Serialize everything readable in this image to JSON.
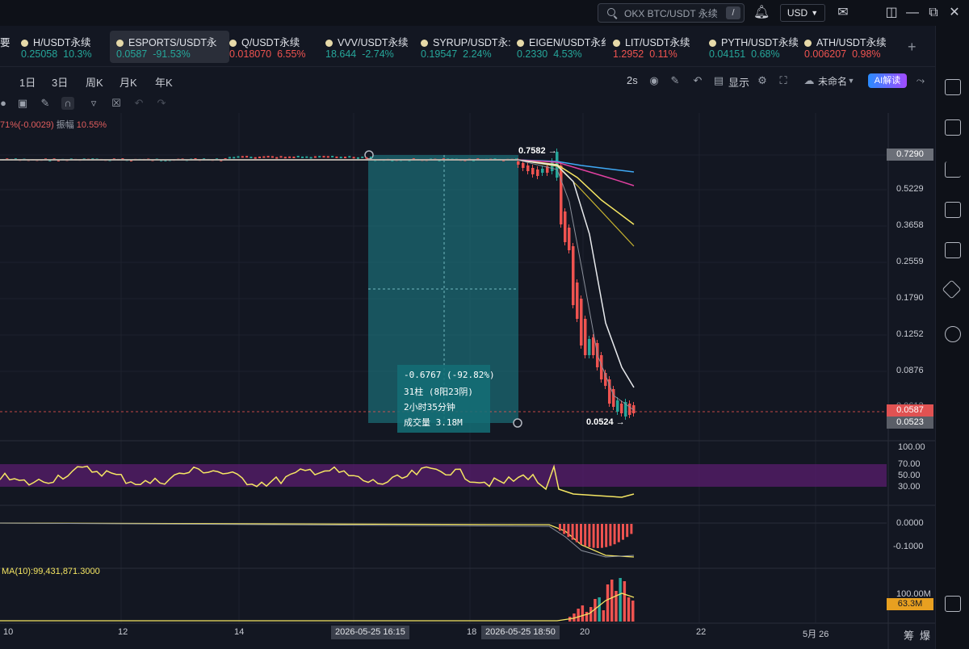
{
  "header": {
    "search_placeholder": "OKX BTC/USDT 永续",
    "search_shortcut": "/",
    "currency": "USD",
    "icons": [
      "bell-icon",
      "mail-icon",
      "grid-icon",
      "minimize-icon",
      "restore-icon",
      "close-icon"
    ]
  },
  "tickers": [
    {
      "name": "H/USDT永续",
      "price": "0.25058",
      "change": "10.3%",
      "dir": "up",
      "active": false
    },
    {
      "name": "ESPORTS/USDT永",
      "price": "0.0587",
      "change": "-91.53%",
      "dir": "up",
      "active": true
    },
    {
      "name": "Q/USDT永续",
      "price": "0.018070",
      "change": "6.55%",
      "dir": "dn",
      "active": false
    },
    {
      "name": "VVV/USDT永续",
      "price": "18.644",
      "change": "-2.74%",
      "dir": "up",
      "active": false
    },
    {
      "name": "SYRUP/USDT永:",
      "price": "0.19547",
      "change": "2.24%",
      "dir": "up",
      "active": false
    },
    {
      "name": "EIGEN/USDT永纟",
      "price": "0.2330",
      "change": "4.53%",
      "dir": "up",
      "active": false
    },
    {
      "name": "LIT/USDT永续",
      "price": "1.2952",
      "change": "0.11%",
      "dir": "dn",
      "active": false
    },
    {
      "name": "PYTH/USDT永续",
      "price": "0.04151",
      "change": "0.68%",
      "dir": "up",
      "active": false
    },
    {
      "name": "ATH/USDT永续",
      "price": "0.006207",
      "change": "0.98%",
      "dir": "dn",
      "active": false
    }
  ],
  "ticker_left_fragment": "要",
  "plus_label": "+",
  "timeframes": [
    "1日",
    "3日",
    "周K",
    "月K",
    "年K"
  ],
  "toolbar_right": {
    "interval": "2s",
    "display": "显示",
    "unnamed": "未命名",
    "ai": "AI解读"
  },
  "info_line": {
    "change": "71%(-0.0029)",
    "amp_label": "振幅",
    "amp_value": "10.55%"
  },
  "price_axis": [
    "0.7290",
    "0.5229",
    "0.3658",
    "0.2559",
    "0.1790",
    "0.1252",
    "0.0876",
    "0.0587",
    "0.0523"
  ],
  "price_badges": {
    "max": "0.7290",
    "current": "0.0587",
    "last": "0.0523",
    "covered": "0.0612"
  },
  "annotations": {
    "high": "0.7582",
    "low": "0.0524"
  },
  "measure_tooltip": [
    "-0.6767 (-92.82%)",
    "31柱 (8阳23阴)",
    "2小时35分钟",
    "成交量 3.18M"
  ],
  "rsi_axis": [
    "100.00",
    "70.00",
    "50.00",
    "30.00"
  ],
  "macd_axis": [
    "0.0000",
    "-0.1000"
  ],
  "volume": {
    "ma_label": "MA(10):99,431,871.3000",
    "axis": "100.00M",
    "badge": "63.3M"
  },
  "x_axis": [
    "10",
    "12",
    "14",
    "18",
    "20",
    "22",
    "5月 26"
  ],
  "x_badges": [
    "2026-05-25 16:15",
    "2026-05-25 18:50"
  ],
  "bottom_right": [
    "筹",
    "爆"
  ],
  "colors": {
    "bg": "#131722",
    "up": "#26a69a",
    "down": "#ef5350",
    "rsi": "#f5e663",
    "rsi_band": "#5a1d6e",
    "measure": "#1b6f77"
  },
  "chart_data": {
    "type": "candlestick",
    "high": 0.7582,
    "low": 0.0524,
    "last": 0.0587,
    "ma_lines": [
      "white",
      "gray",
      "yellow",
      "gold",
      "magenta",
      "blue"
    ]
  }
}
